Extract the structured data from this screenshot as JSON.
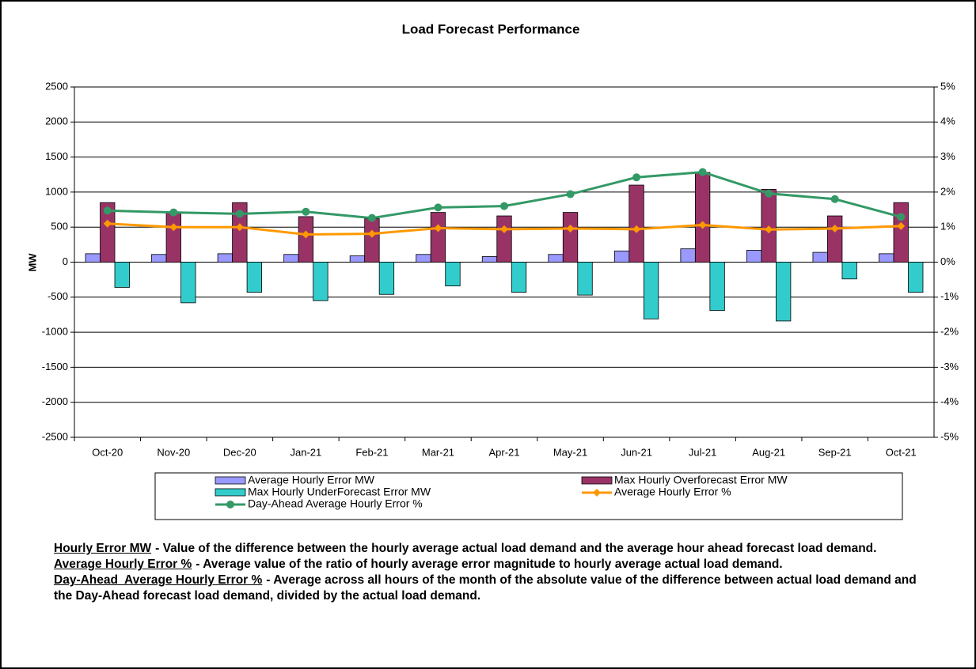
{
  "chart_data": {
    "type": "bar-line",
    "title": "Load Forecast Performance",
    "y_label": "MW",
    "categories": [
      "Oct-20",
      "Nov-20",
      "Dec-20",
      "Jan-21",
      "Feb-21",
      "Mar-21",
      "Apr-21",
      "May-21",
      "Jun-21",
      "Jul-21",
      "Aug-21",
      "Sep-21",
      "Oct-21"
    ],
    "ylim": [
      -2500,
      2500
    ],
    "yticks": [
      2500,
      2000,
      1500,
      1000,
      500,
      0,
      -500,
      -1000,
      -1500,
      -2000,
      -2500
    ],
    "y2lim": [
      -5,
      5
    ],
    "y2ticks": [
      {
        "value": 5,
        "label": "5%"
      },
      {
        "value": 4,
        "label": "4%"
      },
      {
        "value": 3,
        "label": "3%"
      },
      {
        "value": 2,
        "label": "2%"
      },
      {
        "value": 1,
        "label": "1%"
      },
      {
        "value": 0,
        "label": "0%"
      },
      {
        "value": -1,
        "label": "-1%"
      },
      {
        "value": -2,
        "label": "-2%"
      },
      {
        "value": -3,
        "label": "-3%"
      },
      {
        "value": -4,
        "label": "-4%"
      },
      {
        "value": -5,
        "label": "-5%"
      }
    ],
    "grid": true,
    "series": [
      {
        "name": "Average Hourly Error MW",
        "kind": "bar",
        "color": "#9999ff",
        "values": [
          120,
          110,
          120,
          110,
          90,
          110,
          80,
          110,
          160,
          190,
          170,
          140,
          120
        ]
      },
      {
        "name": "Max Hourly Overforecast Error MW",
        "kind": "bar",
        "color": "#993366",
        "values": [
          850,
          710,
          850,
          650,
          620,
          710,
          660,
          710,
          1100,
          1280,
          1040,
          660,
          850
        ]
      },
      {
        "name": "Max Hourly UnderForecast Error MW",
        "kind": "bar",
        "color": "#33cccc",
        "values": [
          -360,
          -580,
          -430,
          -550,
          -460,
          -340,
          -430,
          -470,
          -810,
          -690,
          -840,
          -240,
          -430
        ]
      },
      {
        "name": "Average Hourly Error %",
        "kind": "line",
        "marker": "diamond",
        "axis": "y2",
        "color": "#ff9900",
        "values": [
          1.1,
          1.0,
          1.0,
          0.79,
          0.81,
          0.97,
          0.94,
          0.96,
          0.94,
          1.06,
          0.93,
          0.96,
          1.03
        ]
      },
      {
        "name": "Day-Ahead Average Hourly Error %",
        "kind": "line",
        "marker": "circle",
        "axis": "y2",
        "color": "#339966",
        "values": [
          1.47,
          1.42,
          1.38,
          1.44,
          1.26,
          1.56,
          1.6,
          1.94,
          2.42,
          2.57,
          1.96,
          1.8,
          1.29
        ]
      }
    ]
  },
  "notes": [
    {
      "term": "Hourly Error MW",
      "text": "- Value of the difference between the hourly average actual load demand and the average hour ahead forecast load demand."
    },
    {
      "term": "Average Hourly Error %",
      "text": "- Average value of the ratio of hourly average error magnitude to hourly average actual load demand."
    },
    {
      "term": "Day-Ahead  Average Hourly Error %",
      "text": "- Average across all hours of the month of the absolute value of the difference between actual load demand and the Day-Ahead  forecast load demand, divided by the actual load demand."
    }
  ]
}
